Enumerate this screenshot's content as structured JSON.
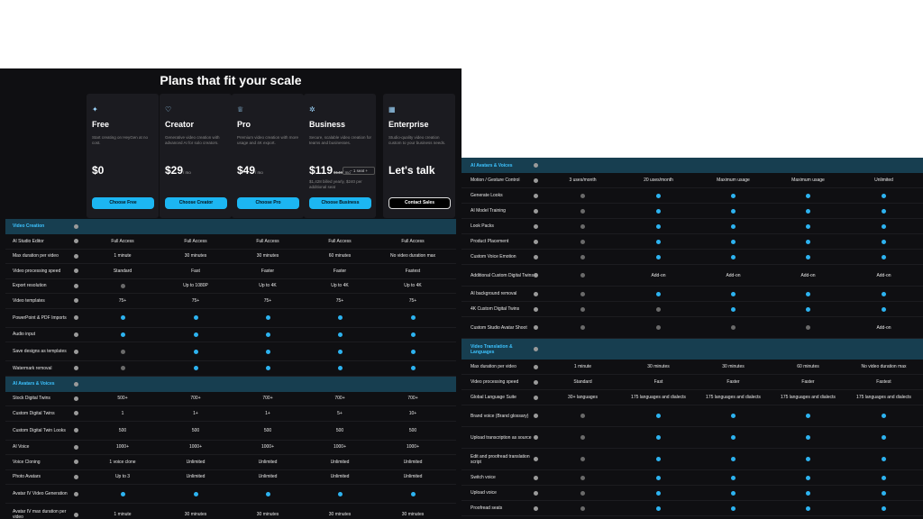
{
  "left": {
    "title": "Plans that fit your scale",
    "plans": [
      {
        "icon": "sparkle-icon",
        "icon_glyph": "✦",
        "name": "Free",
        "desc": "Start creating on HeyGen at no cost.",
        "price": "$0",
        "unit": "",
        "btn": "Choose Free"
      },
      {
        "icon": "heart-icon",
        "icon_glyph": "♡",
        "name": "Creator",
        "desc": "Generative video creation with advanced AI for solo creators.",
        "price": "$29",
        "unit": "/ mo",
        "btn": "Choose Creator"
      },
      {
        "icon": "crown-icon",
        "icon_glyph": "♕",
        "name": "Pro",
        "desc": "Premium video creation with more usage and 4K export.",
        "price": "$49",
        "unit": "/ mo",
        "btn": "Choose Pro"
      },
      {
        "icon": "star-cluster-icon",
        "icon_glyph": "✲",
        "name": "Business",
        "desc": "Secure, scalable video creation for teams and businesses.",
        "price": "$119",
        "strike": "$149",
        "unit": "/ mo",
        "seat": "1 seat",
        "note": "$1,428 billed yearly, $240 per additional seat",
        "btn": "Choose Business"
      },
      {
        "icon": "building-icon",
        "icon_glyph": "▦",
        "name": "Enterprise",
        "desc": "Studio-quality video creation custom to your business needs.",
        "price": "Let's talk",
        "unit": "",
        "btn": "Contact Sales"
      }
    ],
    "sections": [
      {
        "title": "Video Creation",
        "rows": [
          {
            "label": "AI Studio Editor",
            "cells": [
              "Full Access",
              "Full Access",
              "Full Access",
              "Full Access",
              "Full Access"
            ]
          },
          {
            "label": "Max duration per video",
            "cells": [
              "1 minute",
              "30 minutes",
              "30 minutes",
              "60 minutes",
              "No video duration max"
            ]
          },
          {
            "label": "Video processing speed",
            "cells": [
              "Standard",
              "Fast",
              "Faster",
              "Faster",
              "Fastest"
            ]
          },
          {
            "label": "Export resolution",
            "cells": [
              "no",
              "Up to 1080P",
              "Up to 4K",
              "Up to 4K",
              "Up to 4K"
            ]
          },
          {
            "label": "Video templates",
            "cells": [
              "75+",
              "75+",
              "75+",
              "75+",
              "75+"
            ]
          },
          {
            "label": "PowerPoint & PDF Imports",
            "cells": [
              "yes",
              "yes",
              "yes",
              "yes",
              "yes"
            ]
          },
          {
            "label": "Audio input",
            "cells": [
              "yes",
              "yes",
              "yes",
              "yes",
              "yes"
            ]
          },
          {
            "label": "Save designs as templates",
            "cells": [
              "no",
              "yes",
              "yes",
              "yes",
              "yes"
            ]
          },
          {
            "label": "Watermark removal",
            "cells": [
              "no",
              "yes",
              "yes",
              "yes",
              "yes"
            ]
          }
        ]
      },
      {
        "title": "AI Avatars & Voices",
        "rows": [
          {
            "label": "Stock Digital Twins",
            "cells": [
              "500+",
              "700+",
              "700+",
              "700+",
              "700+"
            ]
          },
          {
            "label": "Custom Digital Twins",
            "cells": [
              "1",
              "1+",
              "1+",
              "5+",
              "10+"
            ]
          },
          {
            "label": "Custom Digital Twin Looks",
            "cells": [
              "500",
              "500",
              "500",
              "500",
              "500"
            ]
          },
          {
            "label": "AI Voice",
            "cells": [
              "1000+",
              "1000+",
              "1000+",
              "1000+",
              "1000+"
            ]
          },
          {
            "label": "Voice Cloning",
            "cells": [
              "1 voice clone",
              "Unlimited",
              "Unlimited",
              "Unlimited",
              "Unlimited"
            ]
          },
          {
            "label": "Photo Avatars",
            "cells": [
              "Up to 3",
              "Unlimited",
              "Unlimited",
              "Unlimited",
              "Unlimited"
            ]
          },
          {
            "label": "Avatar IV Video Generation",
            "cells": [
              "yes",
              "yes",
              "yes",
              "yes",
              "yes"
            ]
          },
          {
            "label": "Avatar IV max duration per video",
            "cells": [
              "1 minute",
              "30 minutes",
              "30 minutes",
              "30 minutes",
              "30 minutes"
            ]
          }
        ]
      }
    ]
  },
  "right": {
    "sections": [
      {
        "title": "AI Avatars & Voices",
        "rows": [
          {
            "label": "Motion / Gesture Control",
            "cells": [
              "3 uses/month",
              "20 uses/month",
              "Maximum usage",
              "Maximum usage",
              "Unlimited"
            ]
          },
          {
            "label": "Generate Looks",
            "cells": [
              "no",
              "yes",
              "yes",
              "yes",
              "yes"
            ]
          },
          {
            "label": "AI Model Training",
            "cells": [
              "no",
              "yes",
              "yes",
              "yes",
              "yes"
            ]
          },
          {
            "label": "Look Packs",
            "cells": [
              "no",
              "yes",
              "yes",
              "yes",
              "yes"
            ]
          },
          {
            "label": "Product Placement",
            "cells": [
              "no",
              "yes",
              "yes",
              "yes",
              "yes"
            ]
          },
          {
            "label": "Custom Voice Emotion",
            "cells": [
              "no",
              "yes",
              "yes",
              "yes",
              "yes"
            ]
          },
          {
            "label": "Additional Custom Digital Twins",
            "cells": [
              "no",
              "Add-on",
              "Add-on",
              "Add-on",
              "Add-on"
            ]
          },
          {
            "label": "AI background removal",
            "cells": [
              "no",
              "yes",
              "yes",
              "yes",
              "yes"
            ]
          },
          {
            "label": "4K Custom Digital Twins",
            "cells": [
              "no",
              "no",
              "yes",
              "yes",
              "yes"
            ]
          },
          {
            "label": "Custom Studio Avatar Shoot",
            "cells": [
              "no",
              "no",
              "no",
              "no",
              "Add-on"
            ]
          }
        ]
      },
      {
        "title": "Video Translation & Languages",
        "rows": [
          {
            "label": "Max duration per video",
            "cells": [
              "1 minute",
              "30 minutes",
              "30 minutes",
              "60 minutes",
              "No video duration max"
            ]
          },
          {
            "label": "Video processing speed",
            "cells": [
              "Standard",
              "Fast",
              "Faster",
              "Faster",
              "Fastest"
            ]
          },
          {
            "label": "Global Language Suite",
            "cells": [
              "30+ languages",
              "175 languages and dialects",
              "175 languages and dialects",
              "175 languages and dialects",
              "175 languages and dialects"
            ]
          },
          {
            "label": "Brand voice (Brand glossary)",
            "cells": [
              "no",
              "yes",
              "yes",
              "yes",
              "yes"
            ]
          },
          {
            "label": "Upload transcription as source",
            "cells": [
              "no",
              "yes",
              "yes",
              "yes",
              "yes"
            ]
          },
          {
            "label": "Edit and proofread translation script",
            "cells": [
              "no",
              "yes",
              "yes",
              "yes",
              "yes"
            ]
          },
          {
            "label": "Switch voice",
            "cells": [
              "no",
              "yes",
              "yes",
              "yes",
              "yes"
            ]
          },
          {
            "label": "Upload voice",
            "cells": [
              "no",
              "yes",
              "yes",
              "yes",
              "yes"
            ]
          },
          {
            "label": "Proofread seats",
            "cells": [
              "no",
              "yes",
              "yes",
              "yes",
              "yes"
            ]
          }
        ]
      }
    ]
  },
  "colors": {
    "accent": "#1cb6f2",
    "section_bg": "#173e50",
    "panel_bg": "#0f0f12",
    "check_yes": "#2db3f0",
    "check_no": "#6a6a6a"
  }
}
